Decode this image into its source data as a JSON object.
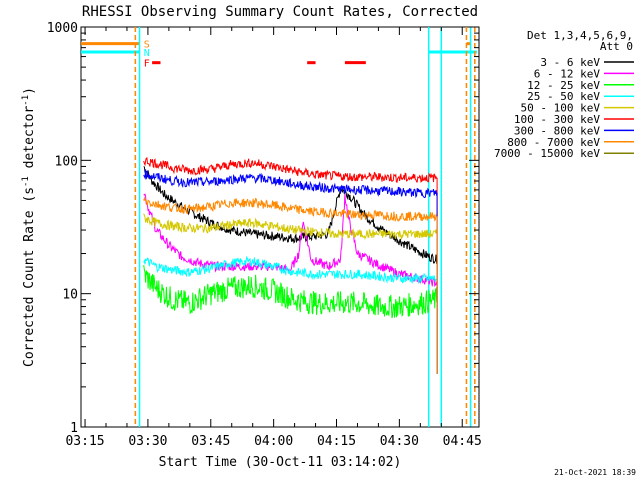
{
  "chart_data": {
    "type": "line",
    "title": "RHESSI Observing Summary Count Rates, Corrected",
    "xlabel": "Start Time (30-Oct-11 03:14:02)",
    "ylabel": "Corrected Count Rate (s⁻¹ detector⁻¹)",
    "ylabel_parts": [
      "Corrected Count Rate (s",
      "-1",
      " detector",
      "-1",
      ")"
    ],
    "xlim": [
      "03:14:02",
      "04:49:00"
    ],
    "ylim": [
      1,
      1000
    ],
    "yscale": "log",
    "grid": false,
    "legend_placement": "right",
    "x_ticks": [
      {
        "label": "03:15",
        "t": "03:15"
      },
      {
        "label": "03:30",
        "t": "03:30"
      },
      {
        "label": "03:45",
        "t": "03:45"
      },
      {
        "label": "04:00",
        "t": "04:00"
      },
      {
        "label": "04:15",
        "t": "04:15"
      },
      {
        "label": "04:30",
        "t": "04:30"
      },
      {
        "label": "04:45",
        "t": "04:45"
      }
    ],
    "y_ticks": [
      {
        "label": "1",
        "value": 1
      },
      {
        "label": "10",
        "value": 10
      },
      {
        "label": "100",
        "value": 100
      },
      {
        "label": "1000",
        "value": 1000
      }
    ],
    "legend": {
      "header": [
        "Det 1,3,4,5,6,9,",
        "Att 0"
      ],
      "entries": [
        {
          "label": "3 - 6 keV",
          "color": "#000000"
        },
        {
          "label": "6 - 12 keV",
          "color": "#ff00ff"
        },
        {
          "label": "12 - 25 keV",
          "color": "#00ff00"
        },
        {
          "label": "25 - 50 keV",
          "color": "#00ffff"
        },
        {
          "label": "50 - 100 keV",
          "color": "#d4c800"
        },
        {
          "label": "100 - 300 keV",
          "color": "#ff0000"
        },
        {
          "label": "300 - 800 keV",
          "color": "#0000ff"
        },
        {
          "label": "800 - 7000 keV",
          "color": "#ff8800"
        },
        {
          "label": "7000 - 15000 keV",
          "color": "#808000"
        }
      ]
    },
    "series": [
      {
        "name": "3 - 6 keV",
        "color": "#000000",
        "x": [
          "03:29",
          "03:31",
          "03:34",
          "03:38",
          "03:42",
          "03:46",
          "03:50",
          "03:55",
          "04:00",
          "04:05",
          "04:10",
          "04:13",
          "04:16",
          "04:18",
          "04:22",
          "04:26",
          "04:30",
          "04:33",
          "04:37",
          "04:39"
        ],
        "y": [
          90,
          70,
          55,
          45,
          38,
          33,
          30,
          28,
          27,
          26,
          27,
          28,
          62,
          55,
          38,
          30,
          25,
          22,
          19,
          18
        ]
      },
      {
        "name": "6 - 12 keV",
        "color": "#ff00ff",
        "x": [
          "03:29",
          "03:30",
          "03:32",
          "03:35",
          "03:38",
          "03:42",
          "03:46",
          "03:50",
          "03:55",
          "04:00",
          "04:04",
          "04:06",
          "04:07",
          "04:09",
          "04:13",
          "04:16",
          "04:17",
          "04:18",
          "04:20",
          "04:24",
          "04:30",
          "04:35",
          "04:39"
        ],
        "y": [
          60,
          45,
          30,
          23,
          19,
          17,
          16,
          16,
          16,
          16,
          15,
          20,
          35,
          18,
          16,
          18,
          55,
          35,
          20,
          17,
          14,
          13,
          12
        ]
      },
      {
        "name": "12 - 25 keV",
        "color": "#00ff00",
        "x": [
          "03:29",
          "03:32",
          "03:36",
          "03:40",
          "03:45",
          "03:50",
          "03:55",
          "04:00",
          "04:05",
          "04:10",
          "04:15",
          "04:20",
          "04:25",
          "04:30",
          "04:35",
          "04:39"
        ],
        "y": [
          14,
          11,
          9,
          8.5,
          10,
          11,
          11.5,
          10.5,
          9,
          8.5,
          8.5,
          8.5,
          8,
          8,
          8.5,
          9
        ]
      },
      {
        "name": "25 - 50 keV",
        "color": "#00ffff",
        "x": [
          "03:29",
          "03:32",
          "03:36",
          "03:40",
          "03:45",
          "03:50",
          "03:55",
          "04:00",
          "04:05",
          "04:10",
          "04:15",
          "04:20",
          "04:25",
          "04:30",
          "04:35",
          "04:39"
        ],
        "y": [
          18,
          16,
          15,
          14.5,
          15.5,
          17,
          17.5,
          16,
          14.5,
          14,
          14,
          14,
          13.5,
          13,
          13,
          13
        ]
      },
      {
        "name": "50 - 100 keV",
        "color": "#d4c800",
        "x": [
          "03:29",
          "03:32",
          "03:36",
          "03:40",
          "03:45",
          "03:50",
          "03:55",
          "04:00",
          "04:05",
          "04:10",
          "04:15",
          "04:20",
          "04:25",
          "04:30",
          "04:35",
          "04:39"
        ],
        "y": [
          37,
          34,
          32,
          31,
          31,
          33,
          34,
          32,
          30,
          29,
          28,
          28,
          28,
          28,
          28,
          28
        ]
      },
      {
        "name": "100 - 300 keV",
        "color": "#ff0000",
        "x": [
          "03:29",
          "03:32",
          "03:36",
          "03:40",
          "03:45",
          "03:50",
          "03:55",
          "04:00",
          "04:05",
          "04:10",
          "04:15",
          "04:20",
          "04:25",
          "04:30",
          "04:35",
          "04:39"
        ],
        "y": [
          100,
          95,
          88,
          84,
          86,
          93,
          96,
          90,
          83,
          78,
          76,
          75,
          75,
          74,
          74,
          74
        ]
      },
      {
        "name": "300 - 800 keV",
        "color": "#0000ff",
        "x": [
          "03:29",
          "03:32",
          "03:36",
          "03:40",
          "03:45",
          "03:50",
          "03:55",
          "04:00",
          "04:05",
          "04:10",
          "04:15",
          "04:20",
          "04:25",
          "04:30",
          "04:35",
          "04:39"
        ],
        "y": [
          80,
          75,
          70,
          68,
          69,
          72,
          74,
          71,
          66,
          63,
          61,
          60,
          59,
          58,
          57,
          57
        ]
      },
      {
        "name": "800 - 7000 keV",
        "color": "#ff8800",
        "x": [
          "03:29",
          "03:32",
          "03:36",
          "03:40",
          "03:45",
          "03:50",
          "03:55",
          "04:00",
          "04:05",
          "04:10",
          "04:15",
          "04:20",
          "04:25",
          "04:30",
          "04:35",
          "04:39"
        ],
        "y": [
          50,
          47,
          44,
          43,
          45,
          48,
          48,
          46,
          43,
          41,
          40,
          39,
          39,
          38,
          38,
          38
        ]
      }
    ],
    "flags": [
      {
        "label": "S",
        "color": "#ff8800",
        "y": 750,
        "segments": [
          [
            "03:14:02",
            "03:28"
          ],
          [
            "04:46",
            "04:47"
          ]
        ]
      },
      {
        "label": "N",
        "color": "#00ffff",
        "y": 650,
        "segments": [
          [
            "03:14:02",
            "03:28"
          ],
          [
            "04:37",
            "04:48:30"
          ]
        ]
      },
      {
        "label": "F",
        "color": "#ff0000",
        "y": 540,
        "segments": [
          [
            "03:31",
            "03:33"
          ],
          [
            "04:08",
            "04:10"
          ],
          [
            "04:17",
            "04:22"
          ]
        ]
      }
    ],
    "vertical_lines": [
      {
        "t": "03:27",
        "color": "#ff8800",
        "style": "dashed"
      },
      {
        "t": "03:28",
        "color": "#00ffff",
        "style": "solid"
      },
      {
        "t": "04:37",
        "color": "#00ffff",
        "style": "solid"
      },
      {
        "t": "04:40",
        "color": "#00ffff",
        "style": "solid"
      },
      {
        "t": "04:46",
        "color": "#ff8800",
        "style": "dashed"
      },
      {
        "t": "04:47",
        "color": "#00ffff",
        "style": "solid"
      },
      {
        "t": "04:48",
        "color": "#ff8800",
        "style": "dashed"
      }
    ]
  },
  "footer": {
    "timestamp": "21-Oct-2021 18:39"
  }
}
